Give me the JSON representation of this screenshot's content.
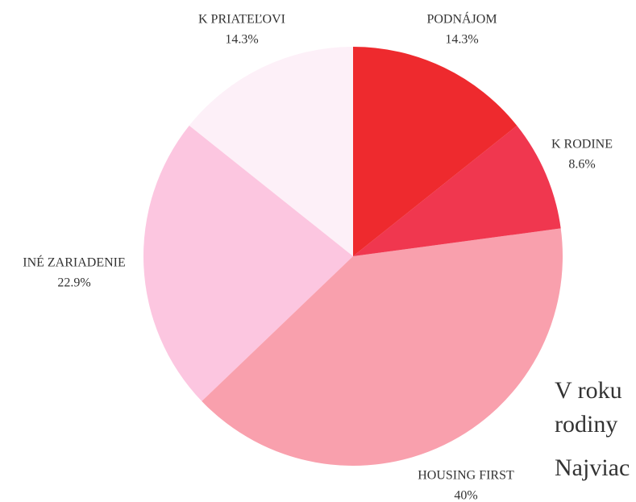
{
  "chart_data": {
    "type": "pie",
    "categories": [
      "PODNÁJOM",
      "K RODINE",
      "HOUSING FIRST",
      "INÉ ZARIADENIE",
      "K PRIATEĽOVI"
    ],
    "values": [
      14.3,
      8.6,
      40,
      22.9,
      14.3
    ],
    "value_labels": [
      "14.3%",
      "8.6%",
      "40%",
      "22.9%",
      "14.3%"
    ],
    "colors": [
      "#ee2a2e",
      "#f0374f",
      "#f9a0ad",
      "#fcc6e0",
      "#fdf0f8"
    ]
  },
  "body_text": [
    "V roku",
    "rodiny",
    "Najviac"
  ]
}
